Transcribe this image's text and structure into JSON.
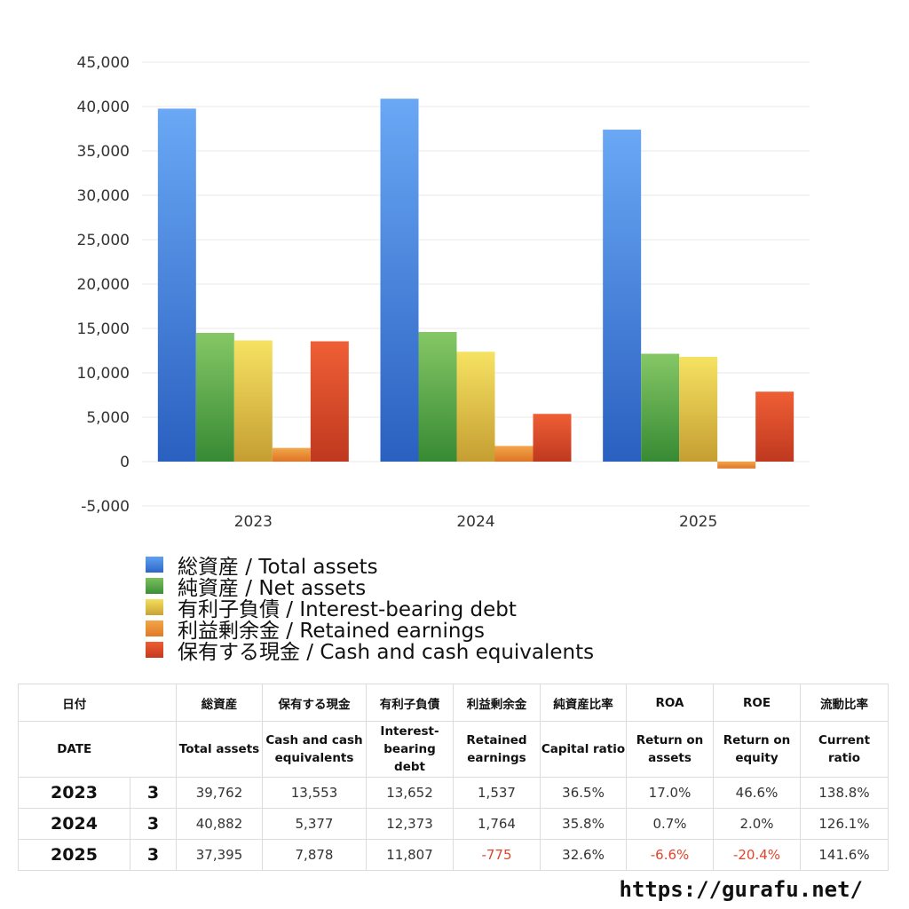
{
  "chart_data": {
    "type": "bar",
    "categories": [
      "2023",
      "2024",
      "2025"
    ],
    "series": [
      {
        "name": "総資産 / Total assets",
        "values": [
          39762,
          40882,
          37395
        ],
        "color": "#3d7fe0"
      },
      {
        "name": "純資産 / Net assets",
        "values": [
          14500,
          14600,
          12150
        ],
        "color": "#4fa443"
      },
      {
        "name": "有利子負債 / Interest-bearing debt",
        "values": [
          13652,
          12373,
          11807
        ],
        "color": "#e6c93c"
      },
      {
        "name": "利益剰余金 / Retained earnings",
        "values": [
          1537,
          1764,
          -775
        ],
        "color": "#ea8b33"
      },
      {
        "name": "保有する現金 /  Cash and cash equivalents",
        "values": [
          13553,
          5377,
          7878
        ],
        "color": "#dd4a28"
      }
    ],
    "ylim": [
      -5000,
      45000
    ],
    "yticks": [
      "45,000",
      "40,000",
      "35,000",
      "30,000",
      "25,000",
      "20,000",
      "15,000",
      "10,000",
      "5,000",
      "0",
      "-5,000"
    ],
    "grid": true,
    "legend_position": "bottom"
  },
  "table": {
    "headers_ja": [
      "日付",
      "総資産",
      "保有する現金",
      "有利子負債",
      "利益剰余金",
      "純資産比率",
      "ROA",
      "ROE",
      "流動比率"
    ],
    "headers_en": [
      "DATE",
      "Total assets",
      "Cash and cash equivalents",
      "Interest-bearing debt",
      "Retained earnings",
      "Capital ratio",
      "Return on assets",
      "Return on equity",
      "Current ratio"
    ],
    "rows": [
      {
        "year": "2023",
        "months": "3",
        "total_assets": "39,762",
        "cash": "13,553",
        "debt": "13,652",
        "retained": "1,537",
        "capital_ratio": "36.5%",
        "roa": "17.0%",
        "roe": "46.6%",
        "current_ratio": "138.8%"
      },
      {
        "year": "2024",
        "months": "3",
        "total_assets": "40,882",
        "cash": "5,377",
        "debt": "12,373",
        "retained": "1,764",
        "capital_ratio": "35.8%",
        "roa": "0.7%",
        "roe": "2.0%",
        "current_ratio": "126.1%"
      },
      {
        "year": "2025",
        "months": "3",
        "total_assets": "37,395",
        "cash": "7,878",
        "debt": "11,807",
        "retained": "-775",
        "capital_ratio": "32.6%",
        "roa": "-6.6%",
        "roe": "-20.4%",
        "current_ratio": "141.6%"
      }
    ],
    "negative_color": "#e0452c"
  },
  "site_url": "https://gurafu.net/"
}
